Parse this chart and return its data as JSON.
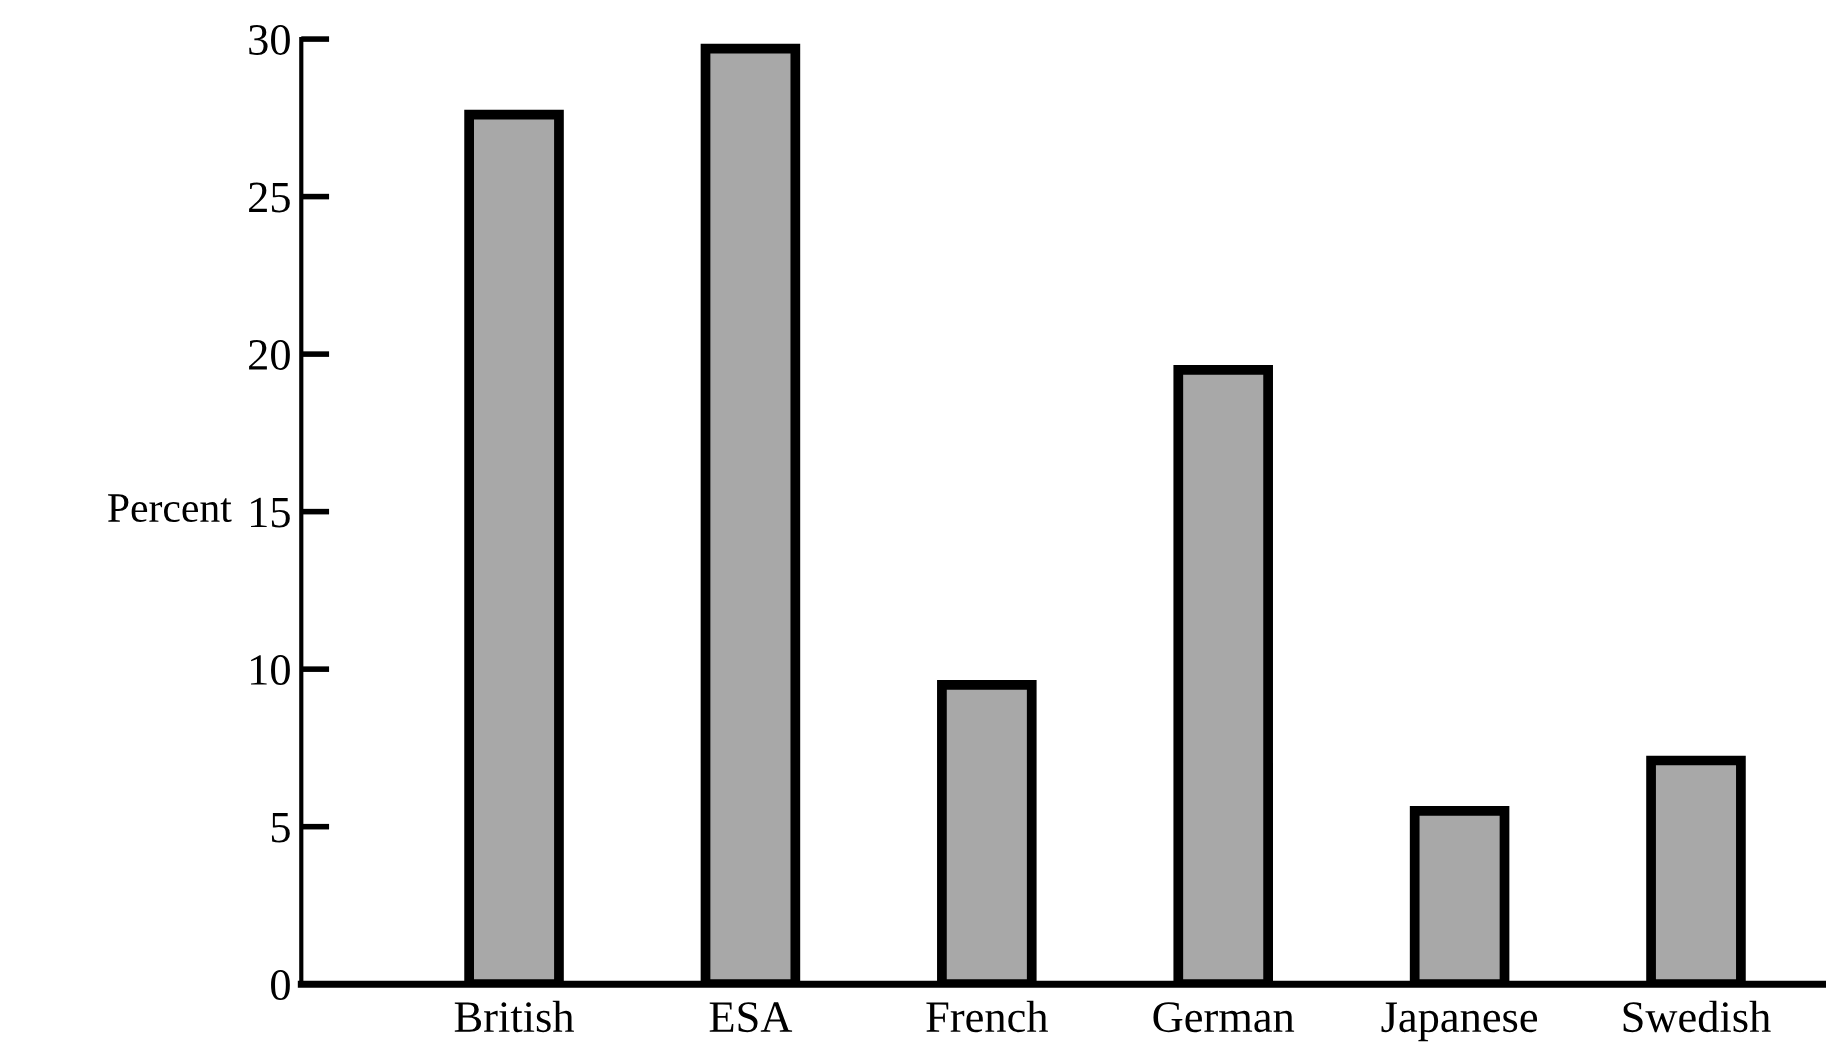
{
  "chart_data": {
    "type": "bar",
    "ylabel": "Percent",
    "categories": [
      "British",
      "ESA",
      "French",
      "German",
      "Japanese",
      "Swedish"
    ],
    "values": [
      27.6,
      29.7,
      9.5,
      19.5,
      5.5,
      7.1
    ],
    "color": "#a8a8a8",
    "ylim": [
      0,
      30
    ],
    "yticks": [
      0,
      5,
      10,
      15,
      20,
      25,
      30
    ],
    "grid": false
  }
}
